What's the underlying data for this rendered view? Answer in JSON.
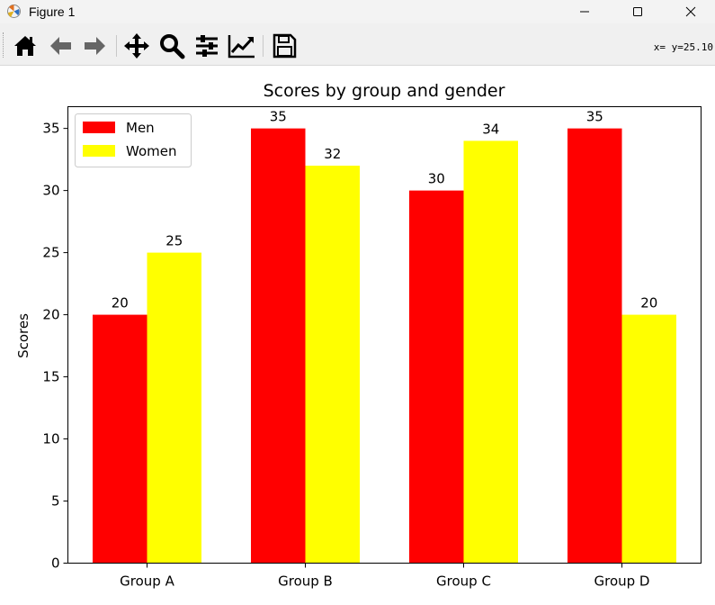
{
  "window": {
    "title": "Figure 1",
    "controls": [
      "minimize",
      "maximize",
      "close"
    ]
  },
  "toolbar": {
    "buttons": [
      {
        "name": "home",
        "icon": "home-icon"
      },
      {
        "name": "back",
        "icon": "arrow-left-icon"
      },
      {
        "name": "forward",
        "icon": "arrow-right-icon"
      },
      {
        "name": "pan",
        "icon": "move-icon"
      },
      {
        "name": "zoom",
        "icon": "magnifier-icon"
      },
      {
        "name": "subplots",
        "icon": "sliders-icon"
      },
      {
        "name": "edit-axis",
        "icon": "line-chart-icon"
      },
      {
        "name": "save",
        "icon": "floppy-disk-icon"
      }
    ],
    "coordinates": "x= y=25.10"
  },
  "chart_data": {
    "type": "bar",
    "title": "Scores by group and gender",
    "xlabel": "",
    "ylabel": "Scores",
    "categories": [
      "Group A",
      "Group B",
      "Group C",
      "Group D"
    ],
    "series": [
      {
        "name": "Men",
        "values": [
          20,
          35,
          30,
          35
        ],
        "color": "#ff0000"
      },
      {
        "name": "Women",
        "values": [
          25,
          32,
          34,
          20
        ],
        "color": "#ffff00"
      }
    ],
    "ylim": [
      0,
      36.75
    ],
    "yticks": [
      0,
      5,
      10,
      15,
      20,
      25,
      30,
      35
    ],
    "legend_position": "upper left",
    "grid": false
  }
}
